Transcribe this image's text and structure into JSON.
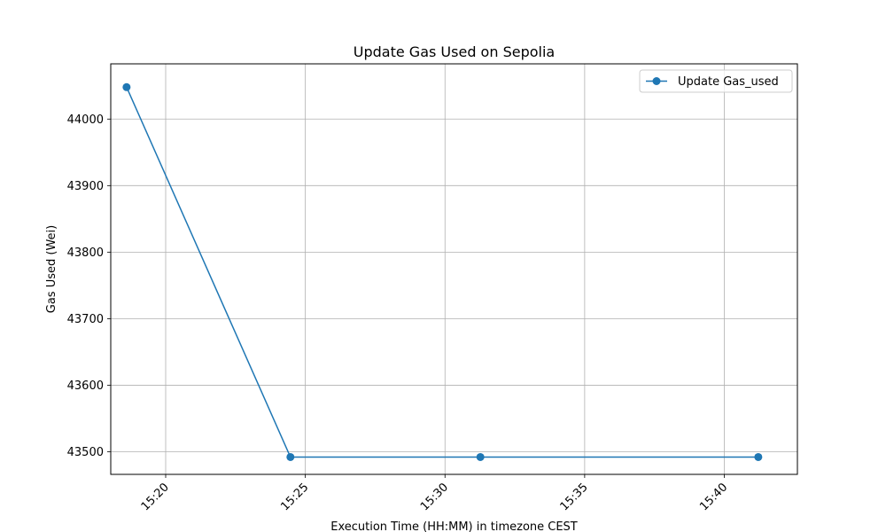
{
  "chart_data": {
    "type": "line",
    "title": "Update Gas Used on Sepolia",
    "xlabel": "Execution Time (HH:MM) in timezone CEST",
    "ylabel": "Gas Used (Wei)",
    "x_ticks": [
      "15:20",
      "15:25",
      "15:30",
      "15:35",
      "15:40"
    ],
    "y_ticks": [
      "43500",
      "43600",
      "43700",
      "43800",
      "43900",
      "44000"
    ],
    "xlim": [
      "15:18:02",
      "15:42:37"
    ],
    "ylim": [
      43466,
      44083
    ],
    "grid": true,
    "legend_position": "top-right",
    "series": [
      {
        "name": "Update Gas_used",
        "color": "#1f77b4",
        "points": [
          {
            "x": "15:18:36",
            "y": 44048
          },
          {
            "x": "15:24:28",
            "y": 43492
          },
          {
            "x": "15:31:16",
            "y": 43492
          },
          {
            "x": "15:41:13",
            "y": 43492
          }
        ]
      }
    ]
  }
}
